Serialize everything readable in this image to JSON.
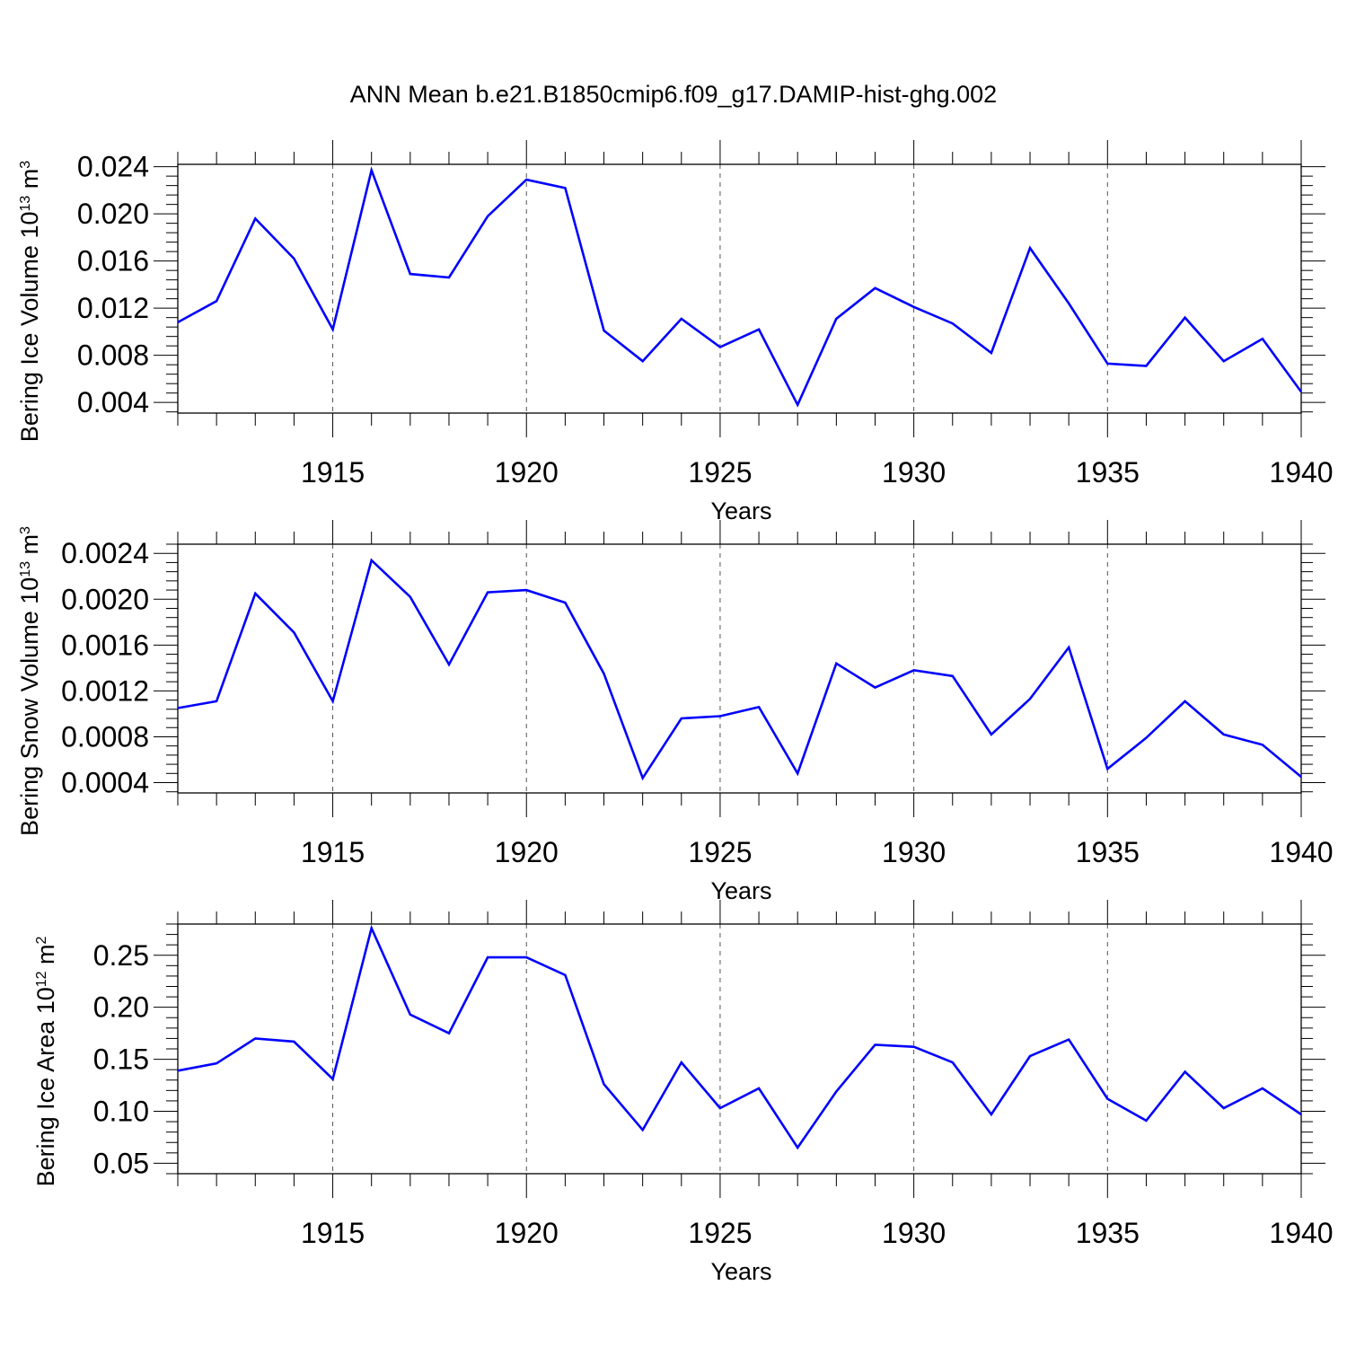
{
  "title": "ANN Mean b.e21.B1850cmip6.f09_g17.DAMIP-hist-ghg.002",
  "colors": {
    "line": "#0000ff",
    "axis": "#000000",
    "refline": "#555555"
  },
  "chart_data": [
    {
      "type": "line",
      "title": "ANN Mean b.e21.B1850cmip6.f09_g17.DAMIP-hist-ghg.002",
      "ylabel": {
        "text": "Bering Ice Volume 10",
        "exp1": "13",
        "unit": " m",
        "exp2": "3"
      },
      "xlabel": "Years",
      "xlim": [
        1911,
        1940
      ],
      "ylim": [
        0.0031,
        0.0242
      ],
      "yticks": [
        0.004,
        0.008,
        0.012,
        0.016,
        0.02,
        0.024
      ],
      "ytick_labels": [
        "0.004",
        "0.008",
        "0.012",
        "0.016",
        "0.020",
        "0.024"
      ],
      "xticks": [
        1915,
        1920,
        1925,
        1930,
        1935,
        1940
      ],
      "xtick_labels": [
        "1915",
        "1920",
        "1925",
        "1930",
        "1935",
        "1940"
      ],
      "x": [
        1911,
        1912,
        1913,
        1914,
        1915,
        1916,
        1917,
        1918,
        1919,
        1920,
        1921,
        1922,
        1923,
        1924,
        1925,
        1926,
        1927,
        1928,
        1929,
        1930,
        1931,
        1932,
        1933,
        1934,
        1935,
        1936,
        1937,
        1938,
        1939,
        1940
      ],
      "series": [
        {
          "values": [
            0.0108,
            0.0126,
            0.0196,
            0.0162,
            0.0102,
            0.0237,
            0.0149,
            0.0146,
            0.0198,
            0.0229,
            0.0222,
            0.0101,
            0.0075,
            0.0111,
            0.0087,
            0.0102,
            0.0038,
            0.0111,
            0.0137,
            0.0121,
            0.0107,
            0.0082,
            0.0171,
            0.0124,
            0.0073,
            0.0071,
            0.0112,
            0.0075,
            0.0094,
            0.0049
          ]
        }
      ]
    },
    {
      "type": "line",
      "ylabel": {
        "text": "Bering Snow Volume 10",
        "exp1": "13",
        "unit": " m",
        "exp2": "3"
      },
      "xlabel": "Years",
      "xlim": [
        1911,
        1940
      ],
      "ylim": [
        0.00031,
        0.00248
      ],
      "yticks": [
        0.0004,
        0.0008,
        0.0012,
        0.0016,
        0.002,
        0.0024
      ],
      "ytick_labels": [
        "0.0004",
        "0.0008",
        "0.0012",
        "0.0016",
        "0.0020",
        "0.0024"
      ],
      "xticks": [
        1915,
        1920,
        1925,
        1930,
        1935,
        1940
      ],
      "xtick_labels": [
        "1915",
        "1920",
        "1925",
        "1930",
        "1935",
        "1940"
      ],
      "x": [
        1911,
        1912,
        1913,
        1914,
        1915,
        1916,
        1917,
        1918,
        1919,
        1920,
        1921,
        1922,
        1923,
        1924,
        1925,
        1926,
        1927,
        1928,
        1929,
        1930,
        1931,
        1932,
        1933,
        1934,
        1935,
        1936,
        1937,
        1938,
        1939,
        1940
      ],
      "series": [
        {
          "values": [
            0.00105,
            0.00111,
            0.00205,
            0.00171,
            0.00111,
            0.00234,
            0.00202,
            0.00143,
            0.00206,
            0.00208,
            0.00197,
            0.00135,
            0.00044,
            0.00096,
            0.00098,
            0.00106,
            0.00048,
            0.00144,
            0.00123,
            0.00138,
            0.00133,
            0.00082,
            0.00113,
            0.00158,
            0.00052,
            0.00079,
            0.00111,
            0.00082,
            0.00073,
            0.00045
          ]
        }
      ]
    },
    {
      "type": "line",
      "ylabel": {
        "text": "Bering Ice Area 10",
        "exp1": "12",
        "unit": " m",
        "exp2": "2"
      },
      "xlabel": "Years",
      "xlim": [
        1911,
        1940
      ],
      "ylim": [
        0.04,
        0.28
      ],
      "yticks": [
        0.05,
        0.1,
        0.15,
        0.2,
        0.25
      ],
      "ytick_labels": [
        "0.05",
        "0.10",
        "0.15",
        "0.20",
        "0.25"
      ],
      "xticks": [
        1915,
        1920,
        1925,
        1930,
        1935,
        1940
      ],
      "xtick_labels": [
        "1915",
        "1920",
        "1925",
        "1930",
        "1935",
        "1940"
      ],
      "x": [
        1911,
        1912,
        1913,
        1914,
        1915,
        1916,
        1917,
        1918,
        1919,
        1920,
        1921,
        1922,
        1923,
        1924,
        1925,
        1926,
        1927,
        1928,
        1929,
        1930,
        1931,
        1932,
        1933,
        1934,
        1935,
        1936,
        1937,
        1938,
        1939,
        1940
      ],
      "series": [
        {
          "values": [
            0.139,
            0.146,
            0.17,
            0.167,
            0.131,
            0.276,
            0.193,
            0.175,
            0.248,
            0.248,
            0.231,
            0.126,
            0.082,
            0.147,
            0.103,
            0.122,
            0.065,
            0.119,
            0.164,
            0.162,
            0.147,
            0.097,
            0.153,
            0.169,
            0.112,
            0.091,
            0.138,
            0.103,
            0.122,
            0.097
          ]
        }
      ]
    }
  ]
}
